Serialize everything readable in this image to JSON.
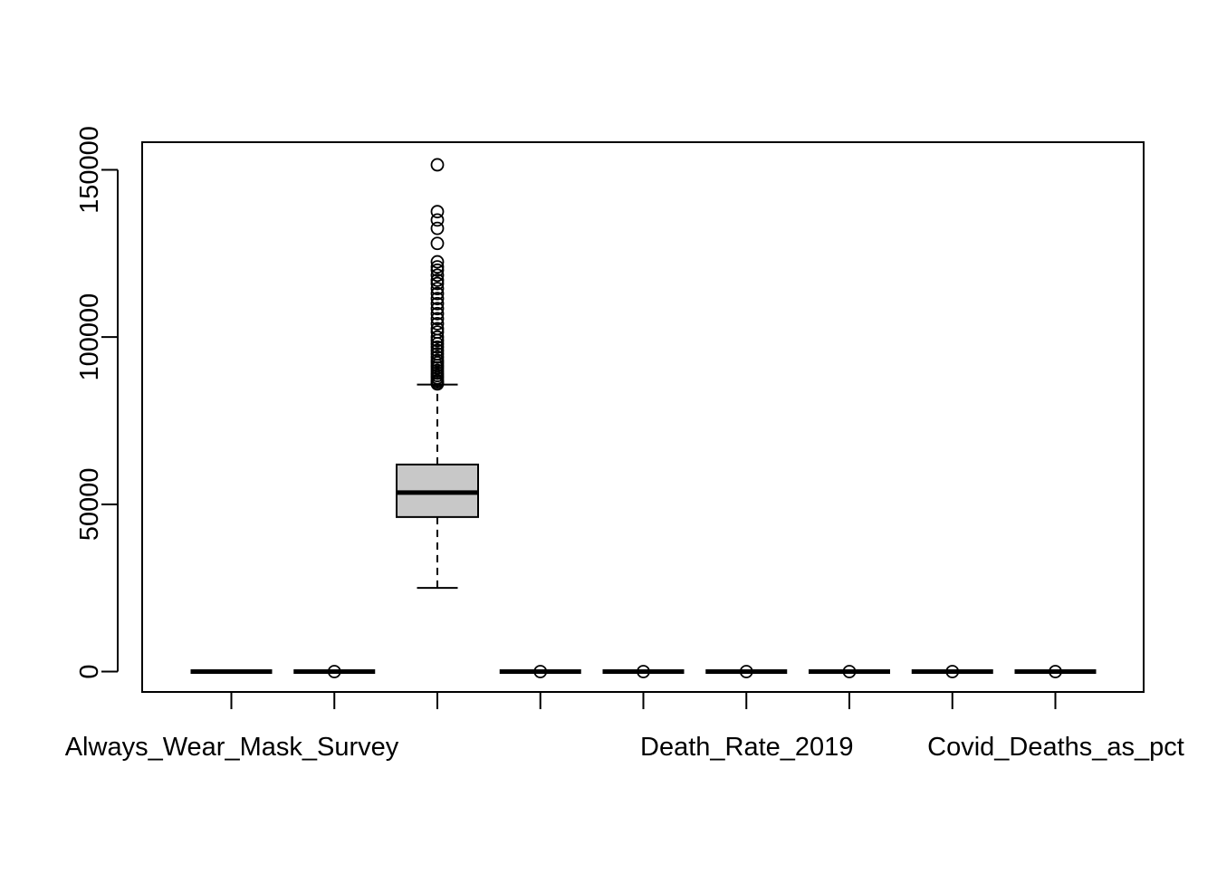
{
  "chart_data": {
    "type": "boxplot",
    "title": "",
    "xlabel": "",
    "ylabel": "",
    "ylim": [
      -6000,
      158000
    ],
    "y_ticks": [
      0,
      50000,
      100000,
      150000
    ],
    "y_tick_labels": [
      "0",
      "50000",
      "100000",
      "150000"
    ],
    "grid": false,
    "legend": "none",
    "box_fill": "#c8c8c8",
    "line_color": "#000000",
    "categories": [
      "Always_Wear_Mask_Survey",
      "",
      "",
      "",
      "",
      "Death_Rate_2019",
      "",
      "",
      "Covid_Deaths_as_pct"
    ],
    "boxes": [
      {
        "label": "Always_Wear_Mask_Survey",
        "min": 0,
        "q1": 0,
        "median": 0,
        "q3": 0,
        "max": 0,
        "outliers": []
      },
      {
        "label": "",
        "min": 0,
        "q1": 0,
        "median": 0,
        "q3": 0,
        "max": 0,
        "outliers": [
          0
        ]
      },
      {
        "label": "",
        "min": 25000,
        "q1": 46200,
        "median": 53500,
        "q3": 61900,
        "max": 85800,
        "outliers": [
          86000,
          86500,
          87000,
          87800,
          88500,
          89200,
          90000,
          90800,
          91500,
          92300,
          93000,
          94000,
          95000,
          96000,
          97000,
          98000,
          99000,
          100000,
          101500,
          102500,
          104000,
          105500,
          107000,
          108500,
          110000,
          111500,
          113000,
          114500,
          116000,
          117000,
          118500,
          120000,
          121000,
          122500,
          128000,
          132500,
          135000,
          137500,
          151500
        ]
      },
      {
        "label": "",
        "min": 0,
        "q1": 0,
        "median": 0,
        "q3": 0,
        "max": 0,
        "outliers": [
          0
        ]
      },
      {
        "label": "",
        "min": 0,
        "q1": 0,
        "median": 0,
        "q3": 0,
        "max": 0,
        "outliers": [
          0
        ]
      },
      {
        "label": "Death_Rate_2019",
        "min": 0,
        "q1": 0,
        "median": 0,
        "q3": 0,
        "max": 0,
        "outliers": [
          0
        ]
      },
      {
        "label": "",
        "min": 0,
        "q1": 0,
        "median": 0,
        "q3": 0,
        "max": 0,
        "outliers": [
          0
        ]
      },
      {
        "label": "",
        "min": 0,
        "q1": 0,
        "median": 0,
        "q3": 0,
        "max": 0,
        "outliers": [
          0
        ]
      },
      {
        "label": "Covid_Deaths_as_pct",
        "min": 0,
        "q1": 0,
        "median": 0,
        "q3": 0,
        "max": 0,
        "outliers": [
          0
        ]
      }
    ]
  }
}
